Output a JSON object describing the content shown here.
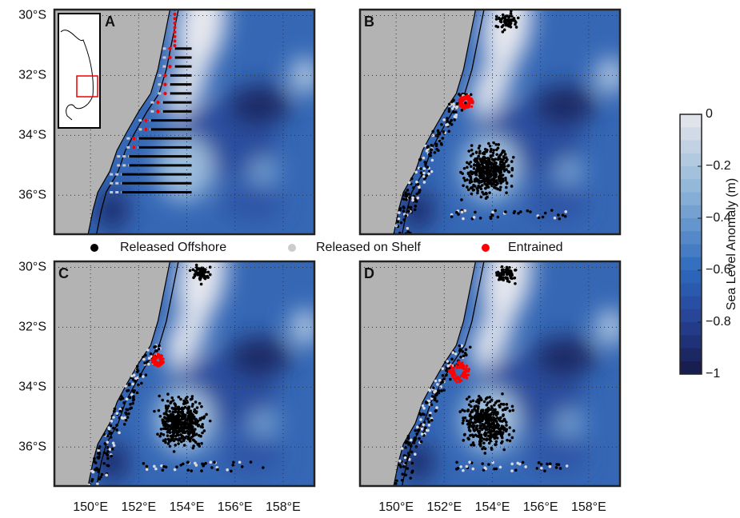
{
  "panels": [
    {
      "label": "A"
    },
    {
      "label": "B"
    },
    {
      "label": "C"
    },
    {
      "label": "D"
    }
  ],
  "map": {
    "xlim": [
      148.5,
      159.3
    ],
    "ylim": [
      -37.3,
      -29.8
    ],
    "xticks": [
      {
        "value": 150,
        "label": "150°E"
      },
      {
        "value": 152,
        "label": "152°E"
      },
      {
        "value": 154,
        "label": "154°E"
      },
      {
        "value": 156,
        "label": "156°E"
      },
      {
        "value": 158,
        "label": "158°E"
      }
    ],
    "yticks": [
      {
        "value": -30,
        "label": "30°S"
      },
      {
        "value": -32,
        "label": "32°S"
      },
      {
        "value": -34,
        "label": "34°S"
      },
      {
        "value": -36,
        "label": "36°S"
      }
    ]
  },
  "legend": [
    {
      "name": "Released Offshore",
      "color": "#000000"
    },
    {
      "name": "Released on Shelf",
      "color": "#cccccc"
    },
    {
      "name": "Entrained",
      "color": "#ff0000"
    }
  ],
  "colorbar": {
    "label": "Sea Level Anomaly (m)",
    "lim": [
      -1,
      0
    ],
    "ticks": [
      0,
      {
        "value": -0.2,
        "label": "−0.2"
      },
      {
        "value": -0.4,
        "label": "−0.4"
      },
      {
        "value": -0.6,
        "label": "−0.6"
      },
      {
        "value": -0.8,
        "label": "−0.8"
      },
      {
        "value": -1,
        "label": "−1"
      }
    ]
  }
}
